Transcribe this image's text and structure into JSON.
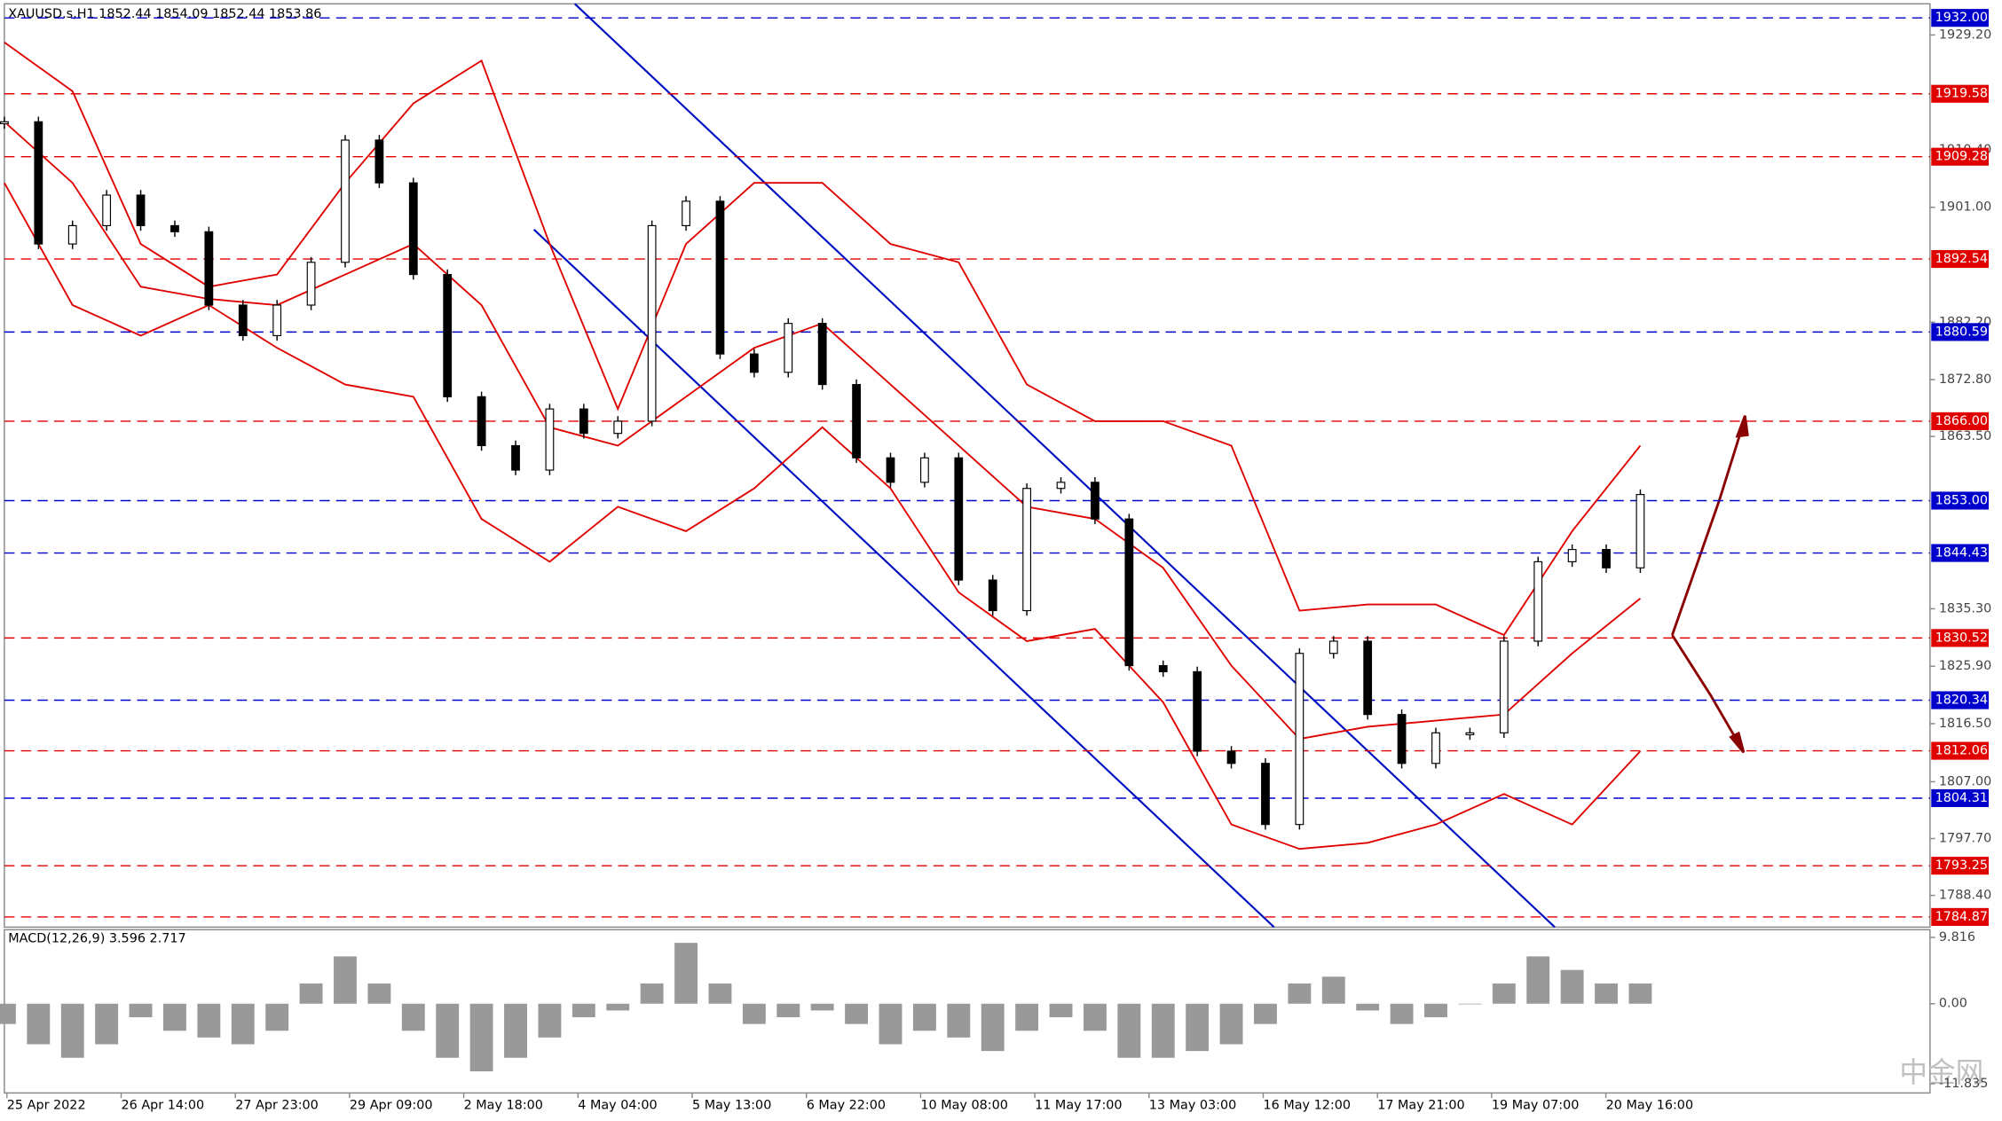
{
  "chart_data": {
    "type": "candlestick",
    "title": "XAUUSD.s,H1  1852.44 1854.09 1852.44 1853.86",
    "ylim": [
      1783.2,
      1934.3
    ],
    "yticks": [
      {
        "value": 1929.2,
        "label": "1929.20"
      },
      {
        "value": 1910.4,
        "label": "1910.40"
      },
      {
        "value": 1901,
        "label": "1901.00"
      },
      {
        "value": 1882.2,
        "label": "1882.20"
      },
      {
        "value": 1872.8,
        "label": "1872.80"
      },
      {
        "value": 1863.5,
        "label": "1863.50"
      },
      {
        "value": 1835.3,
        "label": "1835.30"
      },
      {
        "value": 1825.9,
        "label": "1825.90"
      },
      {
        "value": 1816.5,
        "label": "1816.50"
      },
      {
        "value": 1807,
        "label": "1807.00"
      },
      {
        "value": 1797.7,
        "label": "1797.70"
      },
      {
        "value": 1788.4,
        "label": "1788.40"
      }
    ],
    "levels": [
      {
        "value": 1932,
        "label": "1932.00",
        "color": "#0000cc"
      },
      {
        "value": 1919.58,
        "label": "1919.58",
        "color": "#e00000"
      },
      {
        "value": 1909.28,
        "label": "1909.28",
        "color": "#e00000"
      },
      {
        "value": 1892.54,
        "label": "1892.54",
        "color": "#e00000"
      },
      {
        "value": 1880.59,
        "label": "1880.59",
        "color": "#0000cc"
      },
      {
        "value": 1866,
        "label": "1866.00",
        "color": "#e00000"
      },
      {
        "value": 1853,
        "label": "1853.00",
        "color": "#0000cc"
      },
      {
        "value": 1844.43,
        "label": "1844.43",
        "color": "#0000cc"
      },
      {
        "value": 1830.52,
        "label": "1830.52",
        "color": "#e00000"
      },
      {
        "value": 1820.34,
        "label": "1820.34",
        "color": "#0000cc"
      },
      {
        "value": 1812.06,
        "label": "1812.06",
        "color": "#e00000"
      },
      {
        "value": 1804.31,
        "label": "1804.31",
        "color": "#0000cc"
      },
      {
        "value": 1793.25,
        "label": "1793.25",
        "color": "#e00000"
      },
      {
        "value": 1784.87,
        "label": "1784.87",
        "color": "#e00000"
      }
    ],
    "x_labels": [
      "25 Apr 2022",
      "26 Apr 14:00",
      "27 Apr 23:00",
      "29 Apr 09:00",
      "2 May 18:00",
      "4 May 04:00",
      "5 May 13:00",
      "6 May 22:00",
      "10 May 08:00",
      "11 May 17:00",
      "13 May 03:00",
      "16 May 12:00",
      "17 May 21:00",
      "19 May 07:00",
      "20 May 16:00"
    ],
    "close": [
      1915,
      1895,
      1898,
      1903,
      1898,
      1897,
      1885,
      1880,
      1885,
      1892,
      1912,
      1905,
      1890,
      1870,
      1862,
      1858,
      1868,
      1864,
      1866,
      1898,
      1902,
      1877,
      1874,
      1882,
      1872,
      1860,
      1856,
      1860,
      1840,
      1835,
      1855,
      1856,
      1850,
      1826,
      1825,
      1812,
      1810,
      1800,
      1828,
      1830,
      1818,
      1810,
      1815,
      1815,
      1830,
      1843,
      1845,
      1842,
      1854
    ],
    "bands": [
      {
        "name": "upper",
        "color": "#e00000",
        "values": [
          1928,
          1920,
          1895,
          1888,
          1890,
          1905,
          1918,
          1925,
          1895,
          1868,
          1895,
          1905,
          1905,
          1895,
          1892,
          1872,
          1866,
          1866,
          1862,
          1835,
          1836,
          1836,
          1831,
          1848,
          1862
        ]
      },
      {
        "name": "middle",
        "color": "#e00000",
        "values": [
          1915,
          1905,
          1888,
          1886,
          1885,
          1890,
          1895,
          1885,
          1865,
          1862,
          1870,
          1878,
          1882,
          1872,
          1862,
          1852,
          1850,
          1842,
          1826,
          1814,
          1816,
          1817,
          1818,
          1828,
          1837
        ]
      },
      {
        "name": "lower",
        "color": "#e00000",
        "values": [
          1905,
          1885,
          1880,
          1885,
          1878,
          1872,
          1870,
          1850,
          1843,
          1852,
          1848,
          1855,
          1865,
          1855,
          1838,
          1830,
          1832,
          1820,
          1800,
          1796,
          1797,
          1800,
          1805,
          1800,
          1812
        ]
      }
    ],
    "macd": {
      "label": "MACD(12,26,9) 3.596 2.717",
      "ylim": [
        -13.2,
        10.95
      ],
      "yticks": [
        9.816,
        {
          "value": 0,
          "label": "0.00"
        },
        -11.835
      ],
      "values": [
        -3,
        -6,
        -8,
        -6,
        -2,
        -4,
        -5,
        -6,
        -4,
        3,
        7,
        3,
        -4,
        -8,
        -10,
        -8,
        -5,
        -2,
        -1,
        3,
        9,
        3,
        -3,
        -2,
        -1,
        -3,
        -6,
        -4,
        -5,
        -7,
        -4,
        -2,
        -4,
        -8,
        -8,
        -7,
        -6,
        -3,
        3,
        4,
        -1,
        -3,
        -2,
        0,
        3,
        7,
        5,
        3,
        3
      ]
    },
    "watermark": "中金网"
  }
}
